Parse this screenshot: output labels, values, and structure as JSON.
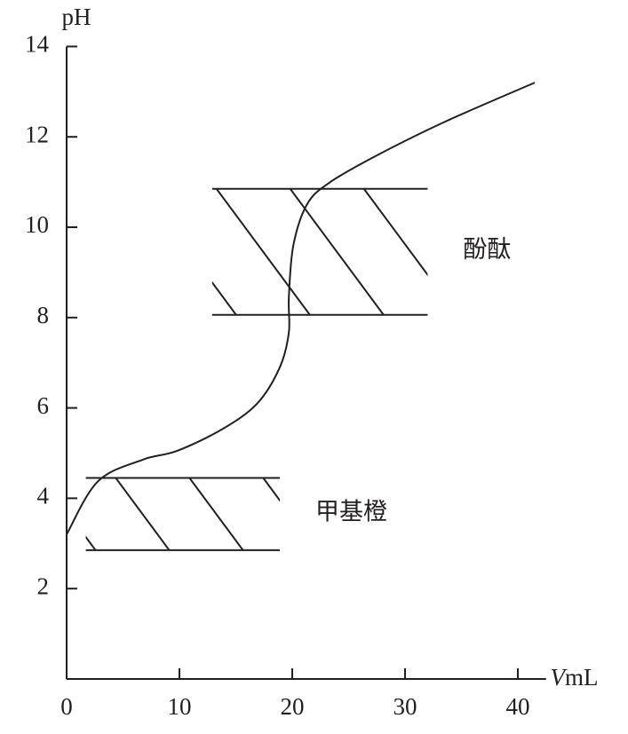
{
  "chart_data": {
    "type": "line",
    "y_label": "pH",
    "x_label_italic": "V",
    "x_label": "mL",
    "x": [
      0,
      2.76,
      6.7,
      9.8,
      13.8,
      16.9,
      18.9,
      19.7,
      19.7,
      20.1,
      21.3,
      23.2,
      27.2,
      33.5,
      41.5
    ],
    "series": [
      {
        "color": "#000000",
        "values": [
          3.2,
          4.37,
          4.85,
          5.05,
          5.53,
          6.1,
          6.9,
          7.67,
          8.45,
          9.6,
          10.5,
          10.97,
          11.55,
          12.33,
          13.2
        ]
      }
    ],
    "xlim": [
      0,
      42.5
    ],
    "xticks": [
      0,
      10,
      20,
      30,
      40
    ],
    "ylim": [
      0,
      14
    ],
    "yticks": [
      2,
      4,
      6,
      8,
      10,
      12,
      14
    ],
    "bands": [
      {
        "label": "甲基橙",
        "x": [
          1.7,
          18.9
        ],
        "y": [
          2.85,
          4.45
        ]
      },
      {
        "label": "酚酞",
        "x": [
          12.9,
          32
        ],
        "y": [
          8.06,
          10.85
        ]
      }
    ]
  }
}
